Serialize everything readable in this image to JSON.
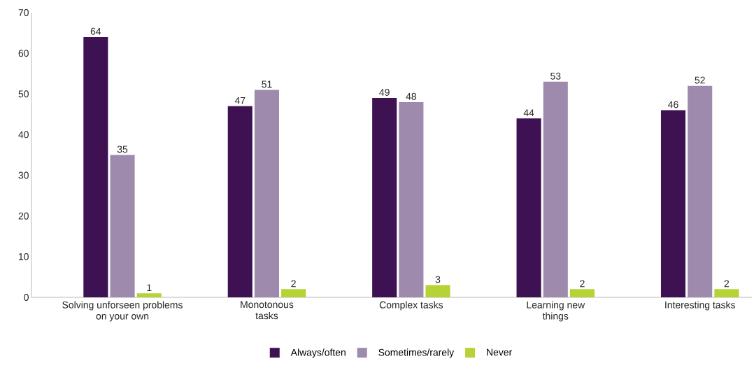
{
  "chart_data": {
    "type": "bar",
    "categories": [
      "Solving unforseen problems on your own",
      "Monotonous tasks",
      "Complex tasks",
      "Learning new things",
      "Interesting tasks"
    ],
    "series": [
      {
        "name": "Always/often",
        "color": "#3d1152",
        "values": [
          64,
          47,
          49,
          44,
          46
        ]
      },
      {
        "name": "Sometimes/rarely",
        "color": "#9e8aad",
        "values": [
          35,
          51,
          48,
          53,
          52
        ]
      },
      {
        "name": "Never",
        "color": "#b5d334",
        "values": [
          1,
          2,
          3,
          2,
          2
        ]
      }
    ],
    "ylim": [
      0,
      70
    ],
    "yticks": [
      0,
      10,
      20,
      30,
      40,
      50,
      60,
      70
    ],
    "data_labels": true,
    "grid": false,
    "legend": "bottom"
  }
}
